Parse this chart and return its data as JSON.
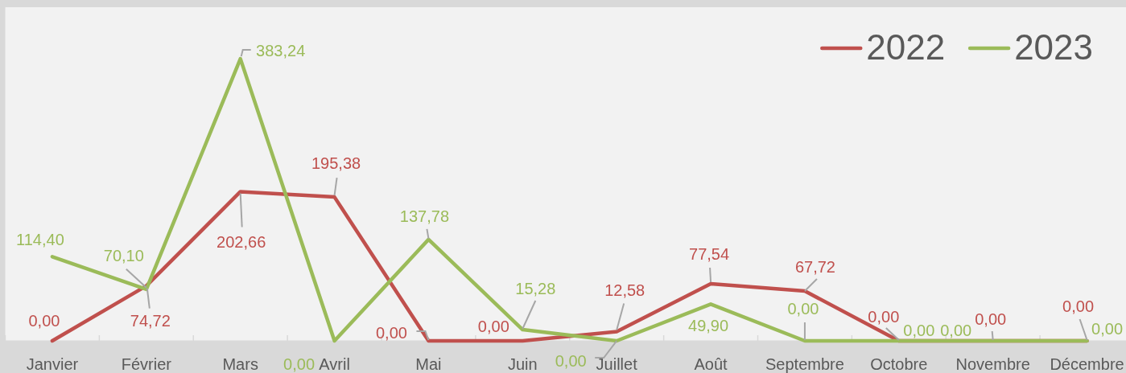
{
  "chart_data": {
    "type": "line",
    "categories": [
      "Janvier",
      "Février",
      "Mars",
      "Avril",
      "Mai",
      "Juin",
      "Juillet",
      "Août",
      "Septembre",
      "Octobre",
      "Novembre",
      "Décembre"
    ],
    "series": [
      {
        "name": "2022",
        "color": "#c0504d",
        "values": [
          0,
          74.72,
          202.66,
          195.38,
          0,
          0,
          12.58,
          77.54,
          67.72,
          0,
          0,
          0
        ],
        "value_labels": [
          "0,00",
          "74,72",
          "202,66",
          "195,38",
          "0,00",
          "0,00",
          "12,58",
          "77,54",
          "67,72",
          "0,00",
          "0,00",
          "0,00"
        ]
      },
      {
        "name": "2023",
        "color": "#9bbb59",
        "values": [
          114.4,
          70.1,
          383.24,
          0,
          137.78,
          15.28,
          0,
          49.9,
          0,
          0,
          0,
          0
        ],
        "value_labels": [
          "114,40",
          "70,10",
          "383,24",
          "0,00",
          "137,78",
          "15,28",
          "0,00",
          "49,90",
          "0,00",
          "0,00",
          "0,00",
          "0,00"
        ]
      }
    ],
    "ylim": [
      0,
      450
    ],
    "tick_labels": "x",
    "legend": "top right",
    "line_style": "solid"
  }
}
